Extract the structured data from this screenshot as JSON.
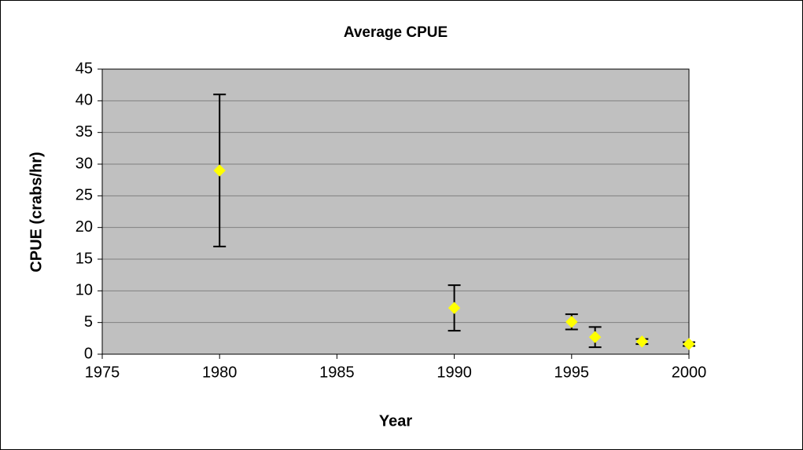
{
  "chart_data": {
    "type": "scatter",
    "title": "Average CPUE",
    "x_label": "Year",
    "y_label": "CPUE (crabs/hr)",
    "x": [
      1980,
      1990,
      1995,
      1996,
      1998,
      2000
    ],
    "values": [
      29,
      7.3,
      5.1,
      2.7,
      2.0,
      1.6
    ],
    "errors": [
      12,
      3.6,
      1.2,
      1.6,
      0.4,
      0.3
    ],
    "color": "#ffff00",
    "error_color": "#000000",
    "plot_background": "#c0c0c0",
    "xlim": [
      1975,
      2000
    ],
    "xticks": [
      1975,
      1980,
      1985,
      1990,
      1995,
      2000
    ],
    "ylim": [
      0,
      45
    ],
    "yticks": [
      0,
      5,
      10,
      15,
      20,
      25,
      30,
      35,
      40,
      45
    ],
    "grid": true
  }
}
